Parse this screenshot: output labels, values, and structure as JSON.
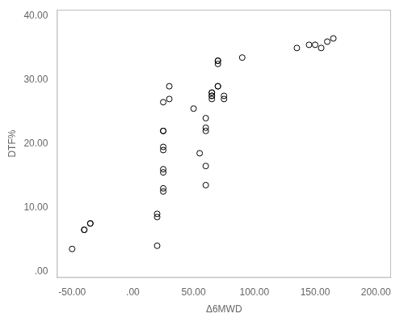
{
  "chart_data": {
    "type": "scatter",
    "x": [
      -50,
      -40,
      -40,
      -35,
      -35,
      20,
      20,
      20,
      25,
      25,
      25,
      25,
      25,
      25,
      25,
      25,
      25,
      30,
      30,
      50,
      55,
      60,
      60,
      60,
      60,
      60,
      65,
      65,
      65,
      65,
      65,
      70,
      70,
      70,
      70,
      70,
      75,
      75,
      90,
      135,
      145,
      150,
      155,
      160,
      165
    ],
    "values": [
      3.5,
      6.5,
      6.5,
      7.5,
      7.5,
      4.0,
      8.5,
      9.0,
      12.5,
      13.0,
      15.5,
      16.0,
      19.0,
      19.5,
      22.0,
      22.0,
      26.5,
      27.0,
      29.0,
      25.5,
      18.5,
      16.5,
      13.5,
      22.0,
      22.5,
      24.0,
      27.0,
      27.5,
      27.5,
      28.0,
      28.0,
      29.0,
      29.0,
      32.5,
      33.0,
      33.0,
      27.0,
      27.5,
      33.5,
      35.0,
      35.5,
      35.5,
      35.0,
      36.0,
      36.5
    ],
    "xlabel": "Δ6MWD",
    "ylabel": "DTF%",
    "xlim": [
      -62.5,
      212.5
    ],
    "ylim": [
      -1,
      41
    ],
    "xticks": [
      {
        "value": -50,
        "label": "-50.00"
      },
      {
        "value": 0,
        "label": ".00"
      },
      {
        "value": 50,
        "label": "50.00"
      },
      {
        "value": 100,
        "label": "100.00"
      },
      {
        "value": 150,
        "label": "150.00"
      },
      {
        "value": 200,
        "label": "200.00"
      }
    ],
    "yticks": [
      {
        "value": 0,
        "label": ".00"
      },
      {
        "value": 10,
        "label": "10.00"
      },
      {
        "value": 20,
        "label": "20.00"
      },
      {
        "value": 30,
        "label": "30.00"
      },
      {
        "value": 40,
        "label": "40.00"
      }
    ],
    "color": "#000000",
    "marker": "circle",
    "grid": false
  }
}
